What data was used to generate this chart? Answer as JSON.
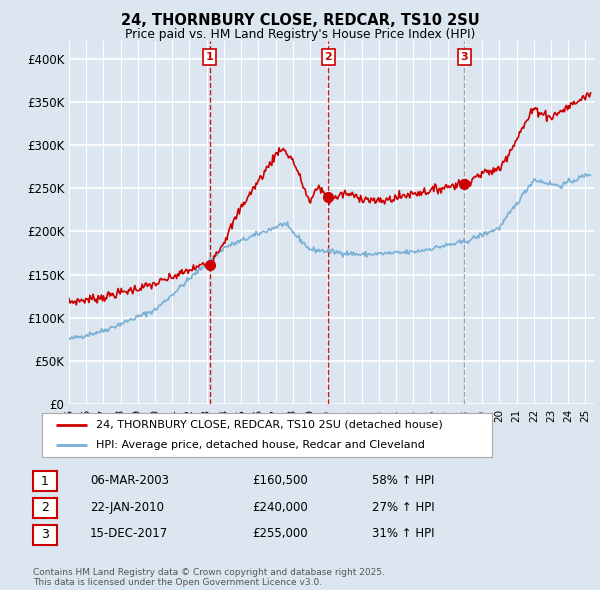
{
  "title_line1": "24, THORNBURY CLOSE, REDCAR, TS10 2SU",
  "title_line2": "Price paid vs. HM Land Registry's House Price Index (HPI)",
  "ylim": [
    0,
    420000
  ],
  "yticks": [
    0,
    50000,
    100000,
    150000,
    200000,
    250000,
    300000,
    350000,
    400000
  ],
  "ytick_labels": [
    "£0",
    "£50K",
    "£100K",
    "£150K",
    "£200K",
    "£250K",
    "£300K",
    "£350K",
    "£400K"
  ],
  "xlim_start": 1995.0,
  "xlim_end": 2025.5,
  "background_color": "#dce6f1",
  "plot_bg_color": "#dce6f1",
  "grid_color": "#ffffff",
  "red_line_color": "#cc0000",
  "blue_line_color": "#7ab0d4",
  "vline1_color": "#cc0000",
  "vline2_color": "#cc0000",
  "vline3_color": "#999999",
  "transaction1": {
    "year": 2003.18,
    "price": 160500,
    "label": "1"
  },
  "transaction2": {
    "year": 2010.06,
    "price": 240000,
    "label": "2"
  },
  "transaction3": {
    "year": 2017.96,
    "price": 255000,
    "label": "3"
  },
  "legend_red_label": "24, THORNBURY CLOSE, REDCAR, TS10 2SU (detached house)",
  "legend_blue_label": "HPI: Average price, detached house, Redcar and Cleveland",
  "table_rows": [
    {
      "num": "1",
      "date": "06-MAR-2003",
      "price": "£160,500",
      "hpi": "58% ↑ HPI"
    },
    {
      "num": "2",
      "date": "22-JAN-2010",
      "price": "£240,000",
      "hpi": "27% ↑ HPI"
    },
    {
      "num": "3",
      "date": "15-DEC-2017",
      "price": "£255,000",
      "hpi": "31% ↑ HPI"
    }
  ],
  "footer": "Contains HM Land Registry data © Crown copyright and database right 2025.\nThis data is licensed under the Open Government Licence v3.0."
}
